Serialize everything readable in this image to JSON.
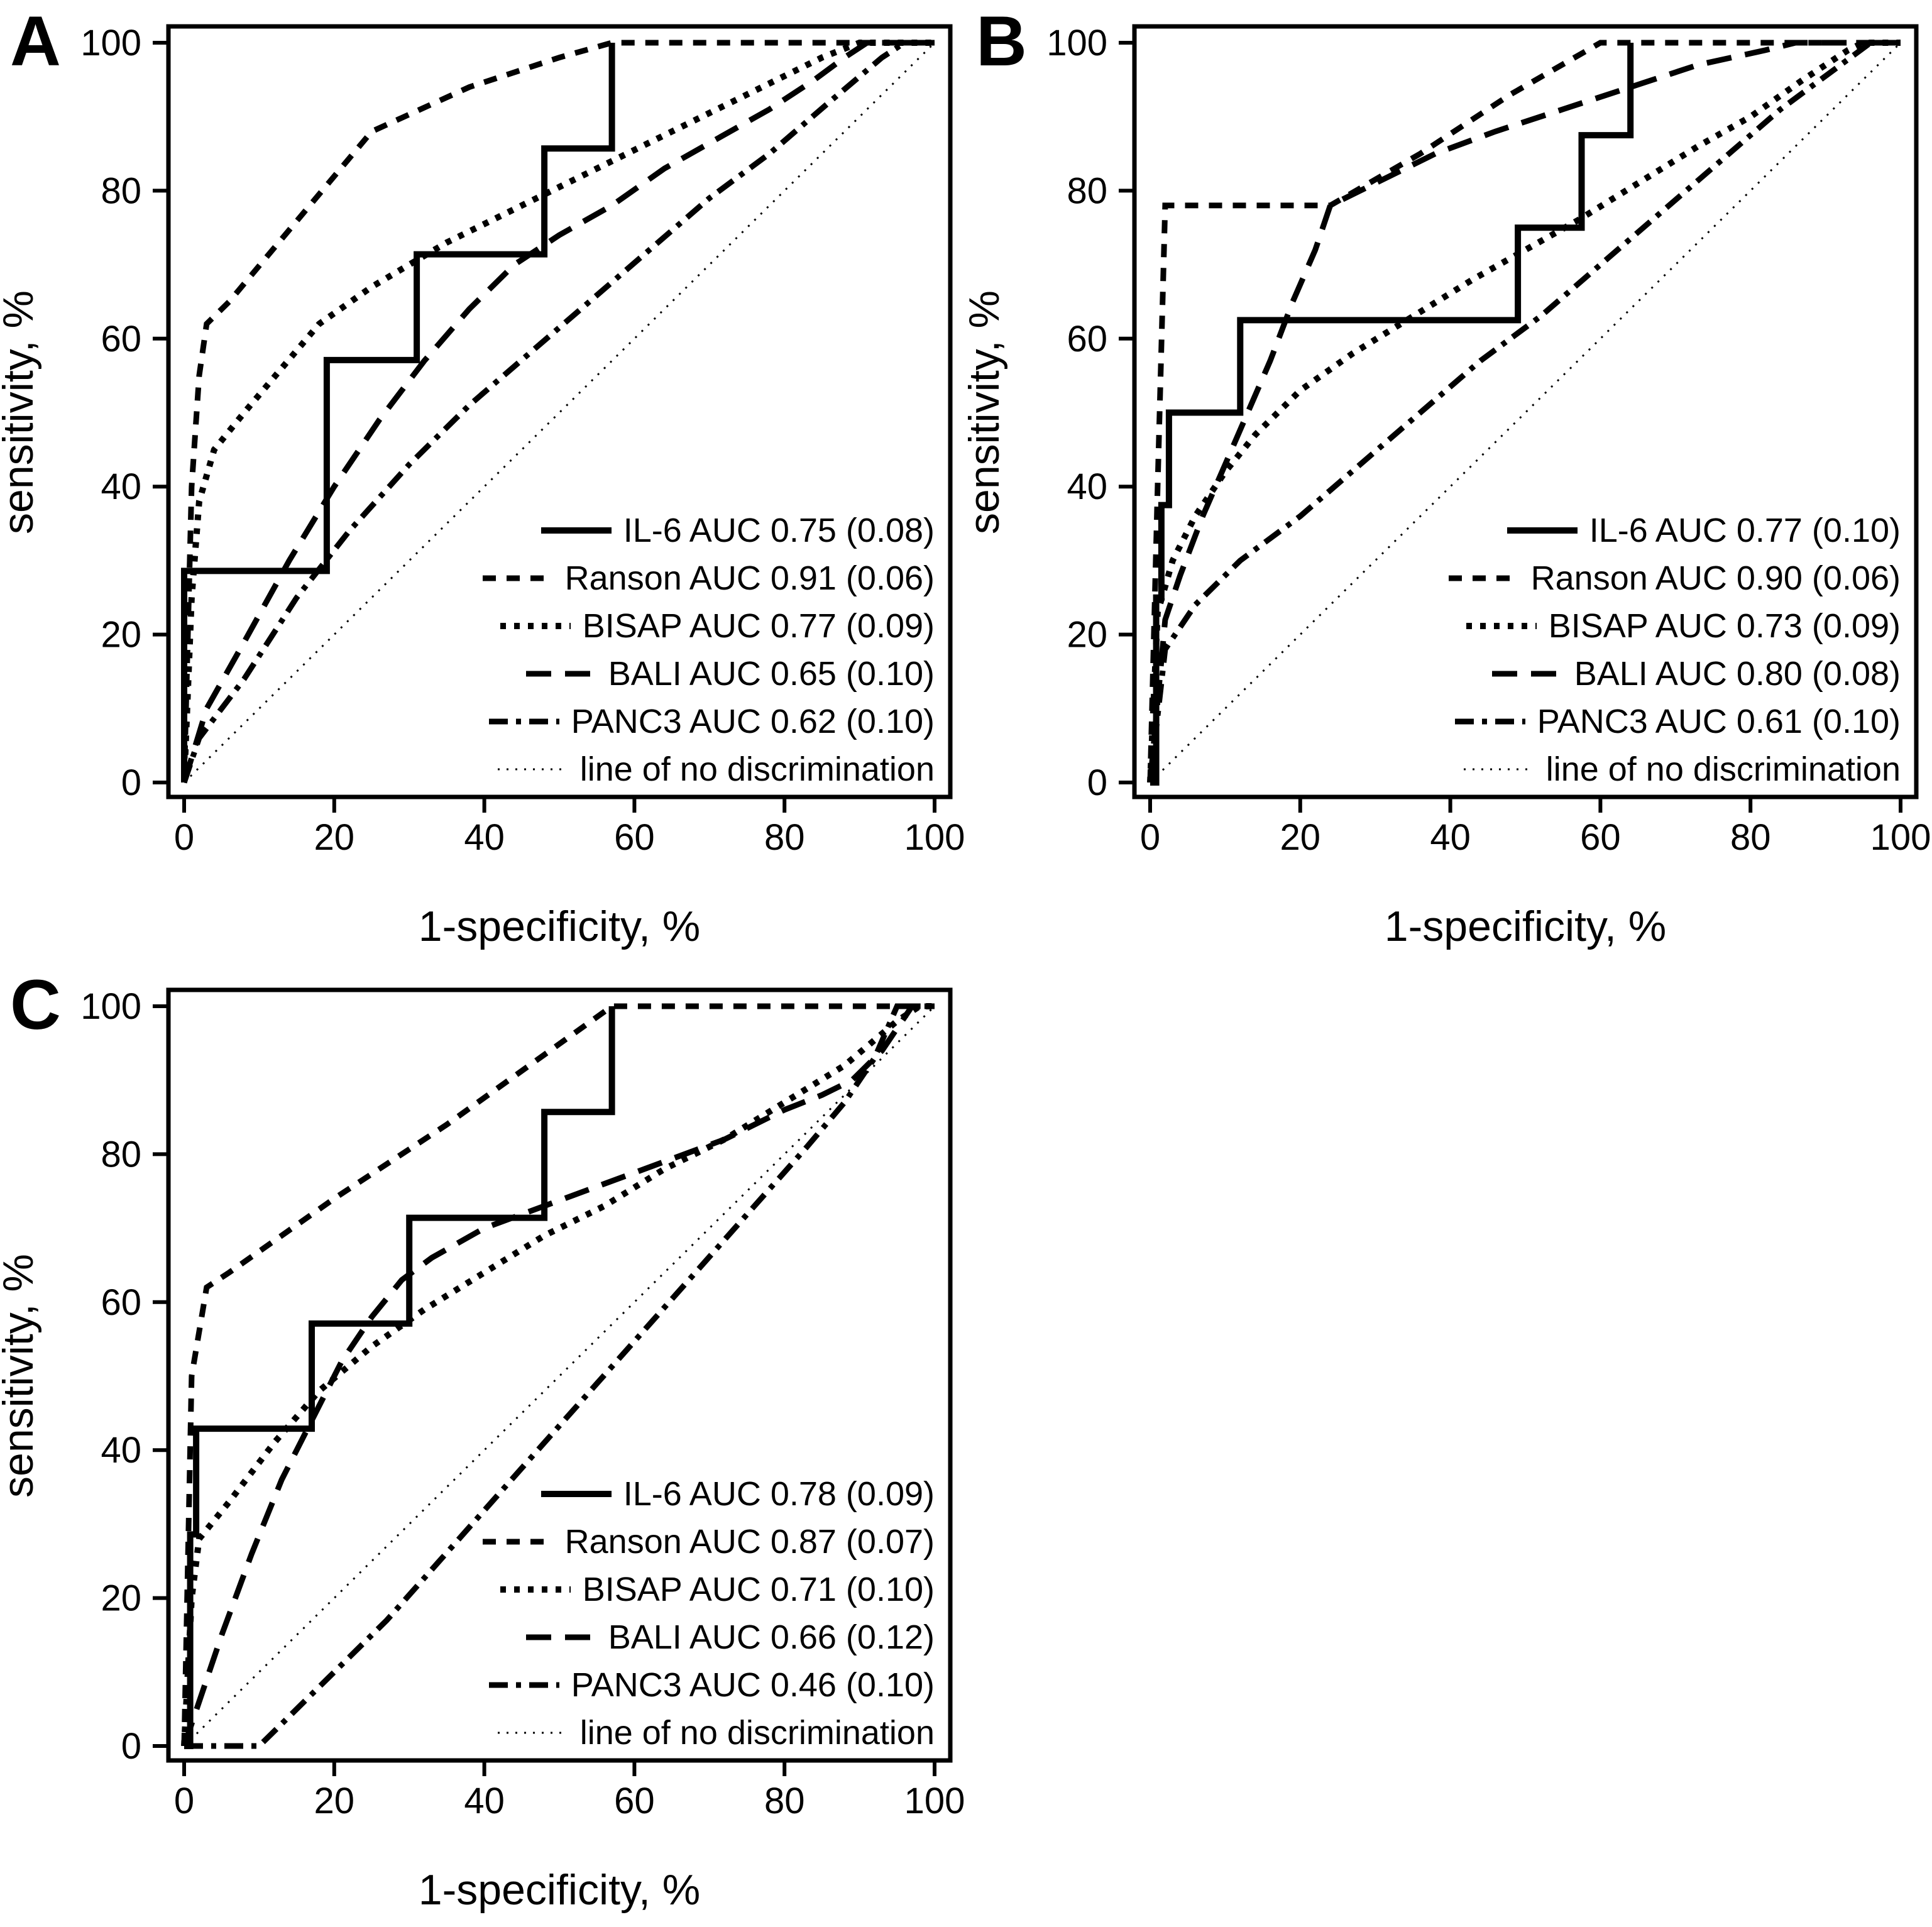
{
  "figure": {
    "background": "#ffffff",
    "line_color": "#000000",
    "x_axis_label": "1-specificity, %",
    "y_axis_label": "sensitivity, %",
    "x_ticks": [
      "0",
      "20",
      "40",
      "60",
      "80",
      "100"
    ],
    "y_ticks": [
      "0",
      "20",
      "40",
      "60",
      "80",
      "100"
    ]
  },
  "line_styles": {
    "il6": {
      "dash": "",
      "width": 10
    },
    "ranson": {
      "dash": "21 17",
      "width": 9
    },
    "bisap": {
      "dash": "9 13",
      "width": 10
    },
    "bali": {
      "dash": "40 22",
      "width": 9
    },
    "panc3": {
      "dash": "30 13 8 13",
      "width": 9
    },
    "diag": {
      "dash": "3 11",
      "width": 3
    }
  },
  "chart_data": [
    {
      "panel": "A",
      "type": "line",
      "title": "",
      "xlabel": "1-specificity, %",
      "ylabel": "sensitivity, %",
      "xlim": [
        0,
        100
      ],
      "ylim": [
        0,
        100
      ],
      "grid": false,
      "legend_position": "lower right",
      "series": [
        {
          "key": "il6",
          "name": "IL-6 AUC 0.75 (0.08)",
          "points": [
            [
              0,
              0
            ],
            [
              0,
              28.6
            ],
            [
              19,
              28.6
            ],
            [
              19,
              57.1
            ],
            [
              31,
              57.1
            ],
            [
              31,
              71.4
            ],
            [
              48,
              71.4
            ],
            [
              48,
              85.7
            ],
            [
              57,
              85.7
            ],
            [
              57,
              100
            ]
          ]
        },
        {
          "key": "ranson",
          "name": "Ranson AUC 0.91 (0.06)",
          "points": [
            [
              0,
              0
            ],
            [
              1,
              40
            ],
            [
              2,
              55
            ],
            [
              3,
              62
            ],
            [
              6,
              65
            ],
            [
              25,
              88
            ],
            [
              38,
              94
            ],
            [
              50,
              98
            ],
            [
              57,
              100
            ],
            [
              100,
              100
            ]
          ]
        },
        {
          "key": "bisap",
          "name": "BISAP AUC 0.77 (0.09)",
          "points": [
            [
              0,
              0
            ],
            [
              1,
              25
            ],
            [
              2,
              38
            ],
            [
              4,
              45
            ],
            [
              8,
              50
            ],
            [
              13,
              56
            ],
            [
              18,
              62
            ],
            [
              25,
              67
            ],
            [
              35,
              73
            ],
            [
              45,
              78
            ],
            [
              55,
              83
            ],
            [
              65,
              88
            ],
            [
              75,
              93
            ],
            [
              85,
              98
            ],
            [
              90,
              100
            ],
            [
              100,
              100
            ]
          ]
        },
        {
          "key": "bali",
          "name": "BALI AUC 0.65 (0.10)",
          "points": [
            [
              0,
              0
            ],
            [
              3,
              10
            ],
            [
              8,
              19
            ],
            [
              14,
              30
            ],
            [
              20,
              40
            ],
            [
              26,
              49
            ],
            [
              32,
              57
            ],
            [
              38,
              64
            ],
            [
              44,
              70
            ],
            [
              50,
              74
            ],
            [
              57,
              78
            ],
            [
              64,
              83
            ],
            [
              71,
              87
            ],
            [
              78,
              91
            ],
            [
              84,
              95
            ],
            [
              88,
              98
            ],
            [
              91,
              100
            ],
            [
              100,
              100
            ]
          ]
        },
        {
          "key": "panc3",
          "name": "PANC3 AUC 0.62 (0.10)",
          "points": [
            [
              0,
              0
            ],
            [
              2,
              6
            ],
            [
              8,
              14
            ],
            [
              15,
              25
            ],
            [
              22,
              34
            ],
            [
              30,
              43
            ],
            [
              38,
              51
            ],
            [
              46,
              58
            ],
            [
              54,
              65
            ],
            [
              62,
              72
            ],
            [
              70,
              79
            ],
            [
              78,
              85
            ],
            [
              86,
              92
            ],
            [
              93,
              98
            ],
            [
              96,
              100
            ],
            [
              100,
              100
            ]
          ]
        },
        {
          "key": "diag",
          "name": "line of no discrimination",
          "points": [
            [
              0,
              0
            ],
            [
              100,
              100
            ]
          ]
        }
      ]
    },
    {
      "panel": "B",
      "type": "line",
      "title": "",
      "xlabel": "1-specificity, %",
      "ylabel": "sensitivity, %",
      "xlim": [
        0,
        100
      ],
      "ylim": [
        0,
        100
      ],
      "grid": false,
      "legend_position": "lower right",
      "series": [
        {
          "key": "il6",
          "name": "IL-6 AUC 0.77 (0.10)",
          "points": [
            [
              0,
              0
            ],
            [
              0.8,
              0
            ],
            [
              0.8,
              25
            ],
            [
              1.5,
              25
            ],
            [
              1.5,
              37.5
            ],
            [
              2.5,
              37.5
            ],
            [
              2.5,
              50
            ],
            [
              12,
              50
            ],
            [
              12,
              62.5
            ],
            [
              49,
              62.5
            ],
            [
              49,
              75
            ],
            [
              57.5,
              75
            ],
            [
              57.5,
              87.5
            ],
            [
              64,
              87.5
            ],
            [
              64,
              100
            ]
          ]
        },
        {
          "key": "ranson",
          "name": "Ranson AUC 0.90 (0.06)",
          "points": [
            [
              0,
              0
            ],
            [
              1,
              40
            ],
            [
              2,
              78
            ],
            [
              24,
              78
            ],
            [
              36,
              85
            ],
            [
              48,
              93
            ],
            [
              60,
              100
            ],
            [
              100,
              100
            ]
          ]
        },
        {
          "key": "bisap",
          "name": "BISAP AUC 0.73 (0.09)",
          "points": [
            [
              0,
              0
            ],
            [
              1,
              23
            ],
            [
              3,
              30
            ],
            [
              6,
              36
            ],
            [
              10,
              42
            ],
            [
              14,
              47
            ],
            [
              20,
              53
            ],
            [
              27,
              58
            ],
            [
              35,
              63
            ],
            [
              43,
              68
            ],
            [
              50,
              72
            ],
            [
              57,
              76
            ],
            [
              65,
              81
            ],
            [
              73,
              86
            ],
            [
              80,
              90
            ],
            [
              87,
              95
            ],
            [
              93,
              99
            ],
            [
              95,
              100
            ],
            [
              100,
              100
            ]
          ]
        },
        {
          "key": "bali",
          "name": "BALI AUC 0.80 (0.08)",
          "points": [
            [
              0,
              0
            ],
            [
              2,
              22
            ],
            [
              4,
              28
            ],
            [
              7,
              36
            ],
            [
              10,
              43
            ],
            [
              13,
              50
            ],
            [
              16,
              57
            ],
            [
              19,
              65
            ],
            [
              22,
              72
            ],
            [
              24,
              78
            ],
            [
              30,
              81
            ],
            [
              38,
              85
            ],
            [
              46,
              88
            ],
            [
              55,
              91
            ],
            [
              64,
              94
            ],
            [
              73,
              97
            ],
            [
              82,
              99
            ],
            [
              86,
              100
            ],
            [
              100,
              100
            ]
          ]
        },
        {
          "key": "panc3",
          "name": "PANC3 AUC 0.61 (0.10)",
          "points": [
            [
              0,
              0
            ],
            [
              2,
              18
            ],
            [
              6,
              24
            ],
            [
              12,
              30
            ],
            [
              20,
              36
            ],
            [
              28,
              43
            ],
            [
              36,
              50
            ],
            [
              44,
              57
            ],
            [
              52,
              63
            ],
            [
              60,
              70
            ],
            [
              68,
              77
            ],
            [
              76,
              84
            ],
            [
              84,
              91
            ],
            [
              92,
              97
            ],
            [
              96,
              100
            ],
            [
              100,
              100
            ]
          ]
        },
        {
          "key": "diag",
          "name": "line of no discrimination",
          "points": [
            [
              0,
              0
            ],
            [
              100,
              100
            ]
          ]
        }
      ]
    },
    {
      "panel": "C",
      "type": "line",
      "title": "",
      "xlabel": "1-specificity, %",
      "ylabel": "sensitivity, %",
      "xlim": [
        0,
        100
      ],
      "ylim": [
        0,
        100
      ],
      "grid": false,
      "legend_position": "lower right",
      "series": [
        {
          "key": "il6",
          "name": "IL-6 AUC 0.78 (0.09)",
          "points": [
            [
              0,
              0
            ],
            [
              0.8,
              0
            ],
            [
              0.8,
              28.6
            ],
            [
              1.6,
              28.6
            ],
            [
              1.6,
              42.9
            ],
            [
              17,
              42.9
            ],
            [
              17,
              57.1
            ],
            [
              30,
              57.1
            ],
            [
              30,
              71.4
            ],
            [
              48,
              71.4
            ],
            [
              48,
              85.7
            ],
            [
              57,
              85.7
            ],
            [
              57,
              100
            ]
          ]
        },
        {
          "key": "ranson",
          "name": "Ranson AUC 0.87 (0.07)",
          "points": [
            [
              0,
              0
            ],
            [
              1,
              50
            ],
            [
              3,
              62
            ],
            [
              6,
              64
            ],
            [
              20,
              74
            ],
            [
              35,
              84
            ],
            [
              46,
              92
            ],
            [
              57,
              100
            ],
            [
              100,
              100
            ]
          ]
        },
        {
          "key": "bisap",
          "name": "BISAP AUC 0.71 (0.10)",
          "points": [
            [
              0,
              0
            ],
            [
              1,
              20
            ],
            [
              2,
              28
            ],
            [
              6,
              33
            ],
            [
              12,
              41
            ],
            [
              18,
              48
            ],
            [
              25,
              54
            ],
            [
              32,
              59
            ],
            [
              40,
              64
            ],
            [
              48,
              69
            ],
            [
              56,
              73
            ],
            [
              64,
              78
            ],
            [
              72,
              82
            ],
            [
              80,
              87
            ],
            [
              88,
              92
            ],
            [
              95,
              98
            ],
            [
              98,
              100
            ],
            [
              100,
              100
            ]
          ]
        },
        {
          "key": "bali",
          "name": "BALI AUC 0.66 (0.12)",
          "points": [
            [
              0,
              0
            ],
            [
              2,
              6
            ],
            [
              5,
              15
            ],
            [
              9,
              26
            ],
            [
              13,
              36
            ],
            [
              17,
              44
            ],
            [
              21,
              52
            ],
            [
              25,
              58
            ],
            [
              29,
              63
            ],
            [
              33,
              66
            ],
            [
              40,
              70
            ],
            [
              48,
              73
            ],
            [
              56,
              76
            ],
            [
              64,
              79
            ],
            [
              72,
              82
            ],
            [
              80,
              86
            ],
            [
              85,
              88
            ],
            [
              89,
              90
            ],
            [
              93,
              94
            ],
            [
              97,
              100
            ],
            [
              100,
              100
            ]
          ]
        },
        {
          "key": "panc3",
          "name": "PANC3 AUC 0.46 (0.10)",
          "points": [
            [
              0,
              0
            ],
            [
              10,
              0
            ],
            [
              14,
              4
            ],
            [
              20,
              10
            ],
            [
              27,
              17
            ],
            [
              34,
              25
            ],
            [
              41,
              33
            ],
            [
              48,
              41
            ],
            [
              55,
              49
            ],
            [
              62,
              57
            ],
            [
              69,
              65
            ],
            [
              76,
              73
            ],
            [
              83,
              81
            ],
            [
              88,
              87
            ],
            [
              92,
              93
            ],
            [
              95,
              100
            ],
            [
              100,
              100
            ]
          ]
        },
        {
          "key": "diag",
          "name": "line of no discrimination",
          "points": [
            [
              0,
              0
            ],
            [
              100,
              100
            ]
          ]
        }
      ]
    }
  ]
}
